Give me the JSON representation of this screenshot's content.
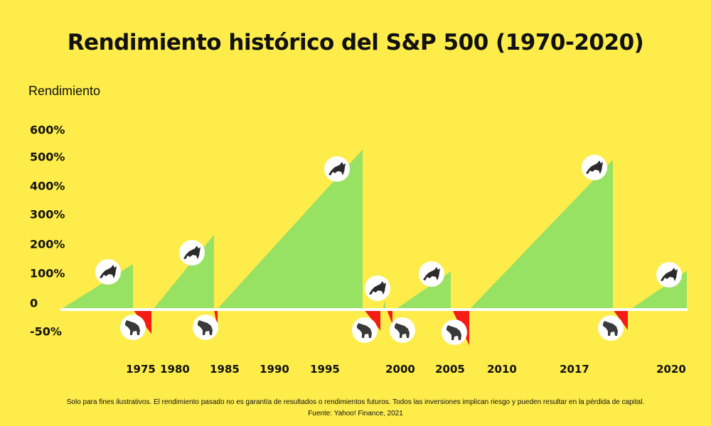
{
  "chart_data": {
    "type": "area",
    "title": "Rendimiento histórico del S&P 500 (1970-2020)",
    "ylabel": "Rendimiento",
    "xlabel": "",
    "y_ticks": [
      "600%",
      "500%",
      "400%",
      "300%",
      "200%",
      "100%",
      "0",
      "-50%"
    ],
    "x_ticks": [
      "1975",
      "1980",
      "1985",
      "1990",
      "1995",
      "2000",
      "2005",
      "2010",
      "2017",
      "2020"
    ],
    "ylim": [
      -60,
      600
    ],
    "grid": false,
    "legend": "none",
    "series": [
      {
        "kind": "bull",
        "color": "#97e163",
        "values": [
          156,
          257,
          550,
          33,
          131,
          514,
          133
        ]
      },
      {
        "kind": "bear",
        "color": "#f51c16",
        "values": [
          -43,
          -34,
          -37,
          -26,
          -63,
          -36
        ]
      }
    ],
    "episodes_in_order": [
      {
        "kind": "bull",
        "value": 156
      },
      {
        "kind": "bear",
        "value": -43
      },
      {
        "kind": "bull",
        "value": 257
      },
      {
        "kind": "bear",
        "value": -34
      },
      {
        "kind": "bull",
        "value": 550
      },
      {
        "kind": "bear",
        "value": -37
      },
      {
        "kind": "bull",
        "value": 33
      },
      {
        "kind": "bear",
        "value": -26
      },
      {
        "kind": "bull",
        "value": 131
      },
      {
        "kind": "bear",
        "value": -63
      },
      {
        "kind": "bull",
        "value": 514
      },
      {
        "kind": "bear",
        "value": -36
      },
      {
        "kind": "bull",
        "value": 133
      }
    ],
    "icons": {
      "bull": "bull-icon",
      "bear": "bear-icon"
    },
    "background": "#fdec4a"
  },
  "footer": {
    "note": "Solo para fines ilustrativos. El rendimiento pasado no es garantía de resultados o rendimientos futuros. Todos las inversiones implican riesgo y pueden resultar en la pérdida de capital.",
    "source": "Fuente: Yahoo! Finance, 2021"
  }
}
